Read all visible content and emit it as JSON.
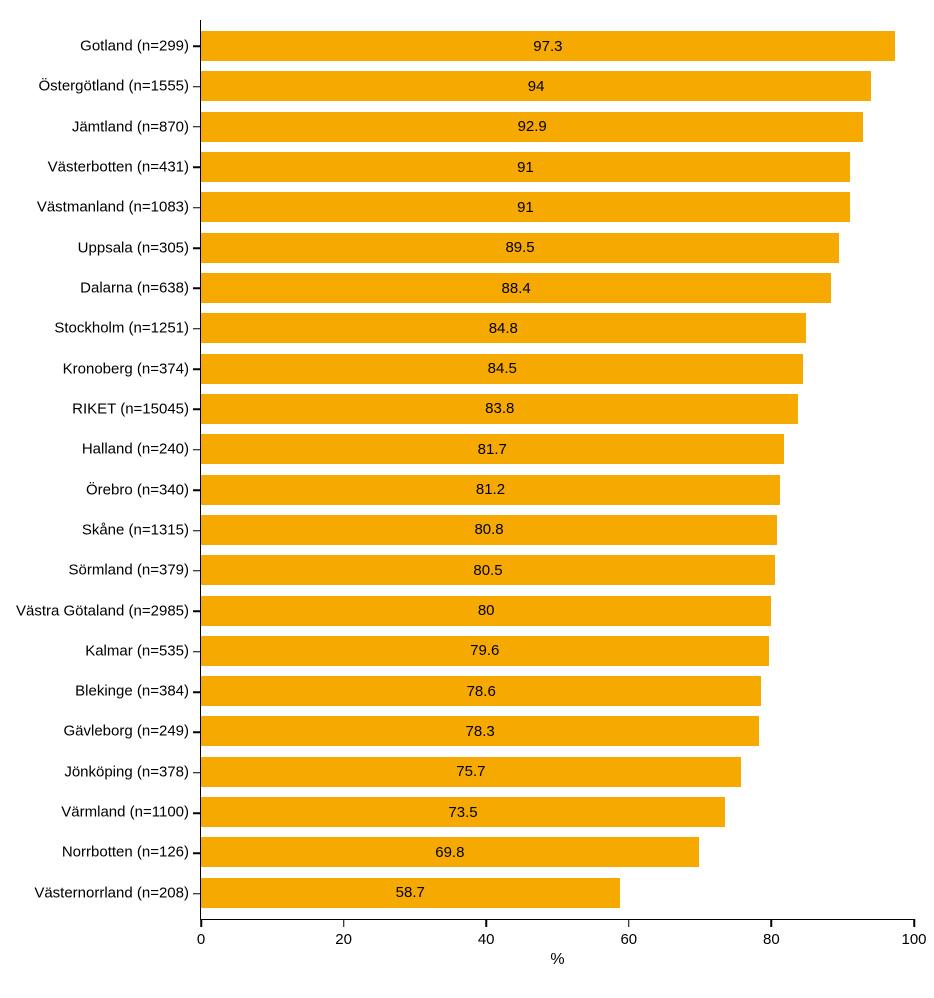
{
  "chart": {
    "type": "bar-horizontal",
    "xlabel": "%",
    "xlim": [
      0,
      100
    ],
    "x_ticks": [
      0,
      20,
      40,
      60,
      80,
      100
    ],
    "bar_color": "#f6a900",
    "background_color": "#ffffff",
    "axis_color": "#000000",
    "label_fontsize": 15,
    "value_fontsize": 15,
    "xlabel_fontsize": 16,
    "bar_gap_ratio": 0.28,
    "categories": [
      {
        "label": "Gotland (n=299)",
        "value": 97.3
      },
      {
        "label": "Östergötland (n=1555)",
        "value": 94
      },
      {
        "label": "Jämtland (n=870)",
        "value": 92.9
      },
      {
        "label": "Västerbotten (n=431)",
        "value": 91
      },
      {
        "label": "Västmanland (n=1083)",
        "value": 91
      },
      {
        "label": "Uppsala (n=305)",
        "value": 89.5
      },
      {
        "label": "Dalarna (n=638)",
        "value": 88.4
      },
      {
        "label": "Stockholm (n=1251)",
        "value": 84.8
      },
      {
        "label": "Kronoberg (n=374)",
        "value": 84.5
      },
      {
        "label": "RIKET (n=15045)",
        "value": 83.8
      },
      {
        "label": "Halland (n=240)",
        "value": 81.7
      },
      {
        "label": "Örebro (n=340)",
        "value": 81.2
      },
      {
        "label": "Skåne (n=1315)",
        "value": 80.8
      },
      {
        "label": "Sörmland (n=379)",
        "value": 80.5
      },
      {
        "label": "Västra Götaland (n=2985)",
        "value": 80
      },
      {
        "label": "Kalmar (n=535)",
        "value": 79.6
      },
      {
        "label": "Blekinge (n=384)",
        "value": 78.6
      },
      {
        "label": "Gävleborg (n=249)",
        "value": 78.3
      },
      {
        "label": "Jönköping (n=378)",
        "value": 75.7
      },
      {
        "label": "Värmland (n=1100)",
        "value": 73.5
      },
      {
        "label": "Norrbotten (n=126)",
        "value": 69.8
      },
      {
        "label": "Västernorrland (n=208)",
        "value": 58.7
      }
    ]
  }
}
